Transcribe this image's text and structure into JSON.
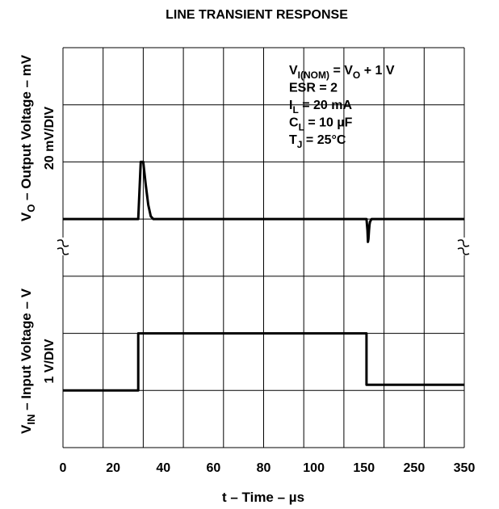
{
  "chart_data": [
    {
      "type": "line",
      "panel": "top",
      "title": "LINE TRANSIENT RESPONSE",
      "ylabel": "VO – Output Voltage – mV",
      "ylabel_parts": {
        "main": "V",
        "sub": "O",
        "rest": " – Output Voltage – mV"
      },
      "yscale_label": "20 mV/DIV",
      "xlabel": "t – Time – µs",
      "x_tick_labels": [
        "0",
        "20",
        "40",
        "60",
        "80",
        "100",
        "150",
        "250",
        "350"
      ],
      "x_axis_divisions": 10,
      "y_axis_divisions": 4,
      "grid": true,
      "series": [
        {
          "x": [
            0,
            30,
            31,
            32,
            33,
            34,
            35,
            36,
            40,
            100,
            155,
            157,
            158,
            159,
            160,
            161,
            162,
            165,
            350
          ],
          "y": [
            0,
            0,
            20,
            20,
            12,
            5,
            1,
            0,
            0,
            0,
            0,
            -4,
            -8,
            -7,
            -4,
            -2,
            -1,
            0,
            0
          ]
        }
      ],
      "annotations": [
        {
          "main": "V",
          "sub": "I(NOM)",
          "rest": " = V",
          "sub2": "O",
          "rest2": " + 1 V"
        },
        {
          "main": "ESR = 2",
          "sub": "",
          "rest": "",
          "sub2": "",
          "rest2": ""
        },
        {
          "main": "I",
          "sub": "L",
          "rest": " = 20 mA",
          "sub2": "",
          "rest2": ""
        },
        {
          "main": "C",
          "sub": "L",
          "rest": " = 10 µF",
          "sub2": "",
          "rest2": ""
        },
        {
          "main": "T",
          "sub": "J",
          "rest": " = 25°C",
          "sub2": "",
          "rest2": ""
        }
      ]
    },
    {
      "type": "line",
      "panel": "bottom",
      "ylabel": "VIN – Input Voltage – V",
      "ylabel_parts": {
        "main": "V",
        "sub": "IN",
        "rest": "  – Input Voltage – V"
      },
      "yscale_label": "1 V/DIV",
      "y_axis_divisions": 3,
      "grid": true,
      "series": [
        {
          "x": [
            0,
            30,
            30,
            155,
            155,
            350
          ],
          "y": [
            0,
            0,
            1,
            1,
            0.1,
            0.1
          ]
        }
      ]
    }
  ]
}
